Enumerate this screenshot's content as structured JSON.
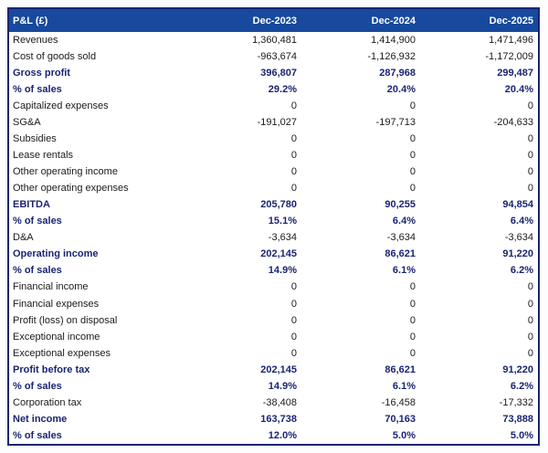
{
  "colors": {
    "header_bg": "#17499D",
    "header_text": "#FFFFFF",
    "bold_row_text": "#1A2472",
    "body_text": "#1A1A1A",
    "table_border": "#1A2472",
    "page_bg": "#FDFDFD"
  },
  "header": {
    "label": "P&L (£)",
    "columns": [
      "Dec-2023",
      "Dec-2024",
      "Dec-2025"
    ]
  },
  "rows": [
    {
      "label": "Revenues",
      "values": [
        "1,360,481",
        "1,414,900",
        "1,471,496"
      ],
      "bold": false
    },
    {
      "label": "Cost of goods sold",
      "values": [
        "-963,674",
        "-1,126,932",
        "-1,172,009"
      ],
      "bold": false
    },
    {
      "label": "Gross profit",
      "values": [
        "396,807",
        "287,968",
        "299,487"
      ],
      "bold": true
    },
    {
      "label": "% of sales",
      "values": [
        "29.2%",
        "20.4%",
        "20.4%"
      ],
      "bold": true
    },
    {
      "label": "Capitalized expenses",
      "values": [
        "0",
        "0",
        "0"
      ],
      "bold": false
    },
    {
      "label": "SG&A",
      "values": [
        "-191,027",
        "-197,713",
        "-204,633"
      ],
      "bold": false
    },
    {
      "label": "Subsidies",
      "values": [
        "0",
        "0",
        "0"
      ],
      "bold": false
    },
    {
      "label": "Lease rentals",
      "values": [
        "0",
        "0",
        "0"
      ],
      "bold": false
    },
    {
      "label": "Other operating income",
      "values": [
        "0",
        "0",
        "0"
      ],
      "bold": false
    },
    {
      "label": "Other operating expenses",
      "values": [
        "0",
        "0",
        "0"
      ],
      "bold": false
    },
    {
      "label": "EBITDA",
      "values": [
        "205,780",
        "90,255",
        "94,854"
      ],
      "bold": true
    },
    {
      "label": "% of sales",
      "values": [
        "15.1%",
        "6.4%",
        "6.4%"
      ],
      "bold": true
    },
    {
      "label": "D&A",
      "values": [
        "-3,634",
        "-3,634",
        "-3,634"
      ],
      "bold": false
    },
    {
      "label": "Operating income",
      "values": [
        "202,145",
        "86,621",
        "91,220"
      ],
      "bold": true
    },
    {
      "label": "% of sales",
      "values": [
        "14.9%",
        "6.1%",
        "6.2%"
      ],
      "bold": true
    },
    {
      "label": "Financial income",
      "values": [
        "0",
        "0",
        "0"
      ],
      "bold": false
    },
    {
      "label": "Financial expenses",
      "values": [
        "0",
        "0",
        "0"
      ],
      "bold": false
    },
    {
      "label": "Profit (loss) on disposal",
      "values": [
        "0",
        "0",
        "0"
      ],
      "bold": false
    },
    {
      "label": "Exceptional income",
      "values": [
        "0",
        "0",
        "0"
      ],
      "bold": false
    },
    {
      "label": "Exceptional expenses",
      "values": [
        "0",
        "0",
        "0"
      ],
      "bold": false
    },
    {
      "label": "Profit before tax",
      "values": [
        "202,145",
        "86,621",
        "91,220"
      ],
      "bold": true
    },
    {
      "label": "% of sales",
      "values": [
        "14.9%",
        "6.1%",
        "6.2%"
      ],
      "bold": true
    },
    {
      "label": "Corporation tax",
      "values": [
        "-38,408",
        "-16,458",
        "-17,332"
      ],
      "bold": false
    },
    {
      "label": "Net income",
      "values": [
        "163,738",
        "70,163",
        "73,888"
      ],
      "bold": true
    },
    {
      "label": "% of sales",
      "values": [
        "12.0%",
        "5.0%",
        "5.0%"
      ],
      "bold": true
    }
  ]
}
